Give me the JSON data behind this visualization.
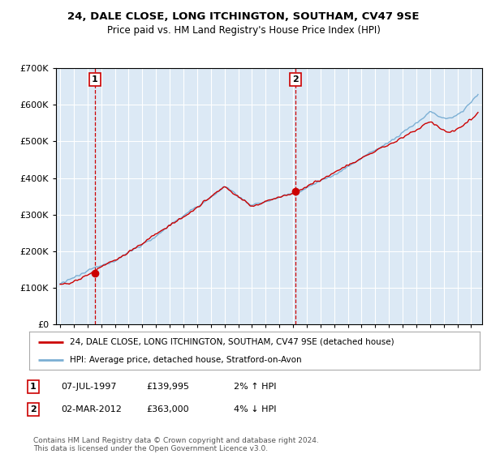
{
  "title": "24, DALE CLOSE, LONG ITCHINGTON, SOUTHAM, CV47 9SE",
  "subtitle": "Price paid vs. HM Land Registry's House Price Index (HPI)",
  "ytick_values": [
    0,
    100000,
    200000,
    300000,
    400000,
    500000,
    600000,
    700000
  ],
  "ylim": [
    0,
    700000
  ],
  "xlim_start": 1994.7,
  "xlim_end": 2025.8,
  "hpi_color": "#7bafd4",
  "house_color": "#cc0000",
  "marker1_price": 139995,
  "marker1_x": 1997.52,
  "marker2_price": 363000,
  "marker2_x": 2012.17,
  "legend_house": "24, DALE CLOSE, LONG ITCHINGTON, SOUTHAM, CV47 9SE (detached house)",
  "legend_hpi": "HPI: Average price, detached house, Stratford-on-Avon",
  "footer": "Contains HM Land Registry data © Crown copyright and database right 2024.\nThis data is licensed under the Open Government Licence v3.0.",
  "background_color": "#ffffff",
  "plot_bg_color": "#dce9f5",
  "grid_color": "#ffffff"
}
